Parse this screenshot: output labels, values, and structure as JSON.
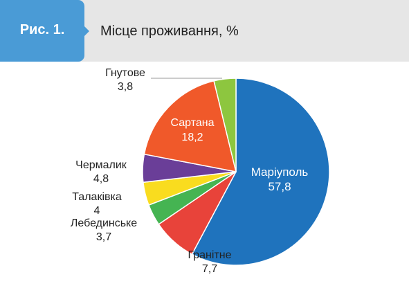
{
  "header": {
    "figure_label": "Рис. 1.",
    "title": "Місце проживання, %"
  },
  "colors": {
    "header_band": "#e6e6e6",
    "figure_tab": "#4a9bd6"
  },
  "chart_data": {
    "type": "pie",
    "title": "Місце проживання, %",
    "slices": [
      {
        "label": "Маріуполь",
        "value": "57,8",
        "numeric": 57.8,
        "color": "#1f73bd"
      },
      {
        "label": "Гранітне",
        "value": "7,7",
        "numeric": 7.7,
        "color": "#e8433a"
      },
      {
        "label": "Лебединське",
        "value": "3,7",
        "numeric": 3.7,
        "color": "#45b452"
      },
      {
        "label": "Талаківка",
        "value": "4",
        "numeric": 4.0,
        "color": "#f9dc1f"
      },
      {
        "label": "Чермалик",
        "value": "4,8",
        "numeric": 4.8,
        "color": "#6a3e98"
      },
      {
        "label": "Сартана",
        "value": "18,2",
        "numeric": 18.2,
        "color": "#f0592a"
      },
      {
        "label": "Гнутове",
        "value": "3,8",
        "numeric": 3.8,
        "color": "#8dc63f"
      }
    ],
    "start_angle_deg": 0,
    "direction": "clockwise"
  }
}
